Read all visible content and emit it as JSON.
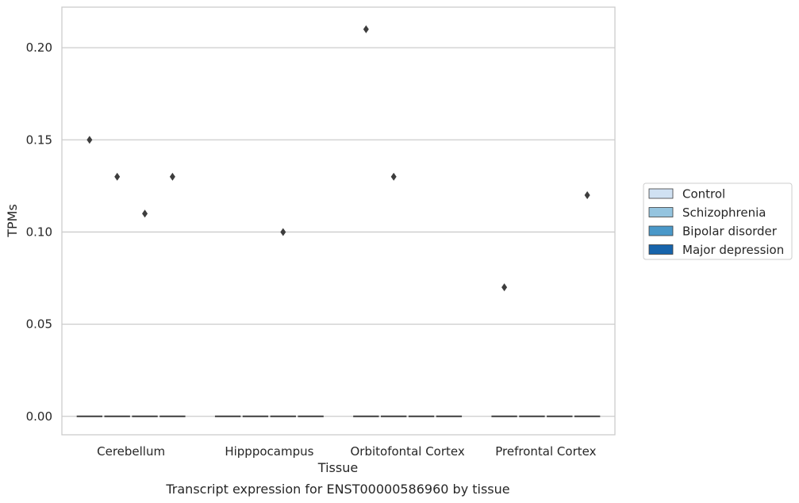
{
  "chart_data": {
    "type": "box",
    "title": "",
    "caption": "Transcript expression for ENST00000586960 by tissue",
    "xlabel": "Tissue",
    "ylabel": "TPMs",
    "ylim": [
      -0.01,
      0.222
    ],
    "yticks": [
      0.0,
      0.05,
      0.1,
      0.15,
      0.2
    ],
    "ytick_labels": [
      "0.00",
      "0.05",
      "0.10",
      "0.15",
      "0.20"
    ],
    "grid": "horizontal",
    "categories": [
      "Cerebellum",
      "Hipppocampus",
      "Orbitofontal Cortex",
      "Prefrontal Cortex"
    ],
    "series": [
      {
        "name": "Control",
        "color": "#d0e1f2"
      },
      {
        "name": "Schizophrenia",
        "color": "#94c4df"
      },
      {
        "name": "Bipolar disorder",
        "color": "#4a98c9"
      },
      {
        "name": "Major depression",
        "color": "#1764ab"
      }
    ],
    "boxes": [
      {
        "category": 0,
        "series": 0,
        "median": 0.0,
        "q1": 0.0,
        "q3": 0.0,
        "outliers": [
          0.15
        ]
      },
      {
        "category": 0,
        "series": 1,
        "median": 0.0,
        "q1": 0.0,
        "q3": 0.0,
        "outliers": [
          0.13
        ]
      },
      {
        "category": 0,
        "series": 2,
        "median": 0.0,
        "q1": 0.0,
        "q3": 0.0,
        "outliers": [
          0.11
        ]
      },
      {
        "category": 0,
        "series": 3,
        "median": 0.0,
        "q1": 0.0,
        "q3": 0.0,
        "outliers": [
          0.13
        ]
      },
      {
        "category": 1,
        "series": 0,
        "median": 0.0,
        "q1": 0.0,
        "q3": 0.0,
        "outliers": []
      },
      {
        "category": 1,
        "series": 1,
        "median": 0.0,
        "q1": 0.0,
        "q3": 0.0,
        "outliers": []
      },
      {
        "category": 1,
        "series": 2,
        "median": 0.0,
        "q1": 0.0,
        "q3": 0.0,
        "outliers": [
          0.1
        ]
      },
      {
        "category": 1,
        "series": 3,
        "median": 0.0,
        "q1": 0.0,
        "q3": 0.0,
        "outliers": []
      },
      {
        "category": 2,
        "series": 0,
        "median": 0.0,
        "q1": 0.0,
        "q3": 0.0,
        "outliers": [
          0.21
        ]
      },
      {
        "category": 2,
        "series": 1,
        "median": 0.0,
        "q1": 0.0,
        "q3": 0.0,
        "outliers": [
          0.13
        ]
      },
      {
        "category": 2,
        "series": 2,
        "median": 0.0,
        "q1": 0.0,
        "q3": 0.0,
        "outliers": []
      },
      {
        "category": 2,
        "series": 3,
        "median": 0.0,
        "q1": 0.0,
        "q3": 0.0,
        "outliers": []
      },
      {
        "category": 3,
        "series": 0,
        "median": 0.0,
        "q1": 0.0,
        "q3": 0.0,
        "outliers": [
          0.07
        ]
      },
      {
        "category": 3,
        "series": 1,
        "median": 0.0,
        "q1": 0.0,
        "q3": 0.0,
        "outliers": []
      },
      {
        "category": 3,
        "series": 2,
        "median": 0.0,
        "q1": 0.0,
        "q3": 0.0,
        "outliers": []
      },
      {
        "category": 3,
        "series": 3,
        "median": 0.0,
        "q1": 0.0,
        "q3": 0.0,
        "outliers": [
          0.12
        ]
      }
    ],
    "legend_position": "right",
    "colors": {
      "grid": "#cccccc",
      "frame": "#cccccc",
      "marks": "#3d3d3d"
    }
  }
}
